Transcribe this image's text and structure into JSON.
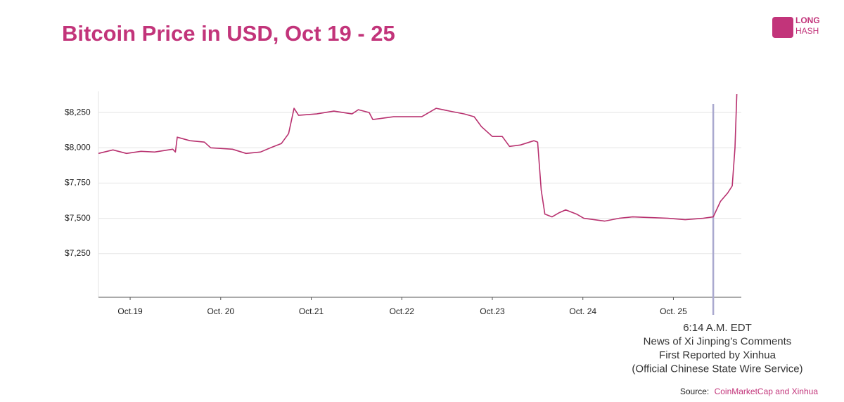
{
  "chart_data": {
    "type": "line",
    "title": "Bitcoin Price in USD, Oct 19 - 25",
    "logo": [
      "LONG",
      "HASH"
    ],
    "source_label": "Source:",
    "source": "CoinMarketCap and Xinhua",
    "xlim": [
      -0.35,
      6.75
    ],
    "ylim": [
      6940,
      8400
    ],
    "grid": true,
    "xticks": [
      {
        "value": 0,
        "label": "Oct.19"
      },
      {
        "value": 1,
        "label": "Oct. 20"
      },
      {
        "value": 2,
        "label": "Oct.21"
      },
      {
        "value": 3,
        "label": "Oct.22"
      },
      {
        "value": 4,
        "label": "Oct.23"
      },
      {
        "value": 5,
        "label": "Oct. 24"
      },
      {
        "value": 6,
        "label": "Oct. 25"
      }
    ],
    "yticks": [
      {
        "value": 7250,
        "label": "$7,250"
      },
      {
        "value": 7500,
        "label": "$7,500"
      },
      {
        "value": 7750,
        "label": "$7,750"
      },
      {
        "value": 8000,
        "label": "$8,000"
      },
      {
        "value": 8250,
        "label": "$8,250"
      }
    ],
    "series": [
      {
        "name": "Bitcoin Price",
        "color": "#b8316f",
        "x": [
          -0.35,
          -0.19,
          -0.04,
          0.12,
          0.27,
          0.47,
          0.5,
          0.52,
          0.66,
          0.82,
          0.89,
          1.13,
          1.28,
          1.44,
          1.55,
          1.67,
          1.75,
          1.81,
          1.86,
          2.06,
          2.25,
          2.45,
          2.52,
          2.64,
          2.68,
          2.91,
          3.22,
          3.38,
          3.53,
          3.69,
          3.8,
          3.88,
          4.0,
          4.11,
          4.19,
          4.31,
          4.46,
          4.5,
          4.54,
          4.58,
          4.66,
          4.74,
          4.81,
          4.93,
          5.01,
          5.24,
          5.4,
          5.55,
          5.94,
          6.13,
          6.33,
          6.44,
          6.52,
          6.6,
          6.65,
          6.68,
          6.7
        ],
        "values": [
          7960,
          7985,
          7960,
          7975,
          7970,
          7990,
          7970,
          8075,
          8050,
          8040,
          8000,
          7990,
          7960,
          7970,
          8000,
          8030,
          8100,
          8280,
          8230,
          8240,
          8260,
          8240,
          8270,
          8250,
          8200,
          8220,
          8220,
          8280,
          8260,
          8240,
          8220,
          8150,
          8080,
          8080,
          8010,
          8020,
          8050,
          8040,
          7700,
          7530,
          7510,
          7540,
          7560,
          7530,
          7500,
          7480,
          7500,
          7510,
          7500,
          7490,
          7500,
          7510,
          7620,
          7680,
          7730,
          8000,
          8380
        ]
      }
    ],
    "annotation": {
      "x": 6.44,
      "lines": [
        "6:14 A.M. EDT",
        "News of Xi Jinping’s Comments",
        "First Reported by Xinhua",
        "(Official Chinese State Wire Service)"
      ]
    }
  }
}
